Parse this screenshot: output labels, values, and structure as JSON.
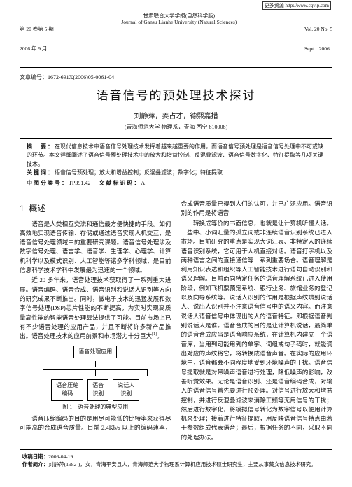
{
  "url_stamp": "更多资源 http://www.cqvip.com",
  "header": {
    "vol_cn": "第 20 卷第 5 期",
    "date_cn": "2006 年 9 月",
    "journal_cn": "甘肃联合大学学报(自然科学版)",
    "journal_en": "Journal of Gansu Lianhe University (Natural Sciences)",
    "vol_en": "Vol. 20 No. 5",
    "date_en": "Sept.   2006"
  },
  "article_id_label": "文章编号：",
  "article_id": "1672-691X(2006)05-0061-04",
  "title": "语音信号的预处理技术探讨",
  "authors": "刘静萍，姜占才，德熙嘉措",
  "affiliation": "(青海师范大学 物理系，青海 西宁 810008)",
  "abstract": {
    "label": "摘　要：",
    "text": "在现代信息技术中语音信号处理技术发挥着越来越重要的作用，而语音信号预处理是语音信号处理中不可或缺的环节。本文详细阐述了语音信号预处理技术中的放大和增益控制、反混叠滤波、语音信号数字化、特征提取等几项关键技术。"
  },
  "keywords": {
    "label": "关键词：",
    "text": "语音信号预处理；放大和增益控制；反混叠滤波；数字化；特征提取"
  },
  "clc": {
    "label1": "中图分类号：",
    "val1": "TP391.42",
    "label2": "文献标识码：",
    "val2": "A"
  },
  "sec1": {
    "num": "1",
    "title": "概述"
  },
  "body": {
    "p1": "语音是人类相互交流和通信最方便快捷的手段。如何高效地实现语音传输、存储或通过语音实现人机交互，是语音信号处理领域中的重要研究课题。语音信号处理涉及数字信号处理、语言学、语音学、生理学、心理学、计算机科学以及模式识别、人工智能等诸多学科领域，是目前信息科学技术学科中发展最为迅速的一个领域。",
    "p2": "近 20 多年来，语音处理技术获取得了一系列重大进展。语音编码、语音合成、语音识别和说话人识别等方向的研究成果不断推出。同时，微电子技术的迅猛发展和数字信号处理(DSP)芯片性能的不断提高，为实时实现高质量高性能的智能语音处理算法提供了可能。目前市场上已有不少语音处理的应用产品，并且不断将许多新产品推出。语音处理技术的应用前景和市场潜力十分巨大",
    "p2_ref": "[1]",
    "p2_tail": "。",
    "p3": "语音压缩编码的目的是用尽可能低的比特率来获得尽可能高的合成语音质量。目前 2.4Kb/s 以上的编码速率，合成语音质量已得到人们的认可，并已广泛应用。语音识别的作用是将语音",
    "p4": "转换成等价的书面信息，也就是让计算机听懂人话。一些中、小词汇量的孤立词或非连续语音识别系统已进入市场。目前研究的重点是实现大词汇表、非特定人的连续语音识别系统，它可用于人机直接对话。语音打字机以及两种语言之间的直接通信等一系列重要场合。语音理解是利用知识表达和组织等人工智能技术进行语句自动识别和语义理解。目前面向特定任务的语音理解系统已进入使用阶段，例如飞机票预定系统、银行业务、旅馆业务的登记以及向导系统等。说话人识别的作用是根据声纹辨别说话人、说出人识别并不注意语音信号中的语义内容。而注意说话人语音信号中体现出的人的语音特征。即根据语音判别说话人是谁。语音合成的目的是让计算机说话，最简单的语音合成应当是语音响应系统，在计算机内建立一个语音库，当用到可能用到的单字、词组或句子码时，就能调出对应的声纹将它，将转换成语音声音。在实际的应用环境中，语音都会不同程度地受到环境噪声的干扰。语音信号提取就是对带噪声语音进行处理，降低噪声的影响，改善听觉效果。无论是语音识别、还是语音编码合成，对输入的语音信号首先要进行预处理。对信号进行放大和增益控制，并进行反混叠滤波来消除工频等无用信号的干扰；然后进行数字化，将模拟信号转化为数字信号以便用计算机来处理；接着进行特征提取，用反映语音信号特点由若干参数组成代表语音；最后，根据任务的不同，采取不同的处理办法。"
  },
  "figure": {
    "top": "语音处理应用",
    "c1": "语音压缩\n编码",
    "c2": "语音\n识别",
    "c3": "说话人\n识别",
    "caption": "图 1　语音处理的典型应用"
  },
  "footnote": {
    "recv_label": "收稿日期：",
    "recv": "2006-04-19.",
    "auth_label": "作者简介：",
    "auth": "刘静萍(1982-)，女，青海平安县人，青海师范大学物理系计算机应用技术硕士研究生，主要从事藏文信息技术研究。"
  },
  "colors": {
    "text": "#111111",
    "rule": "#000000",
    "page_bg": "#ffffff"
  }
}
